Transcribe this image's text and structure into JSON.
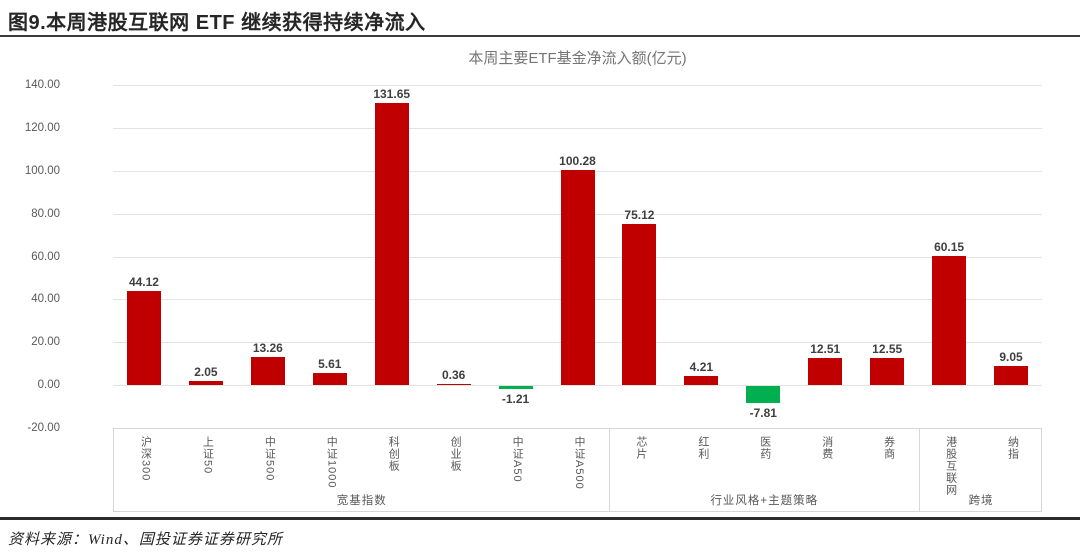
{
  "figure": {
    "title": "图9.本周港股互联网 ETF 继续获得持续净流入",
    "source": "资料来源：Wind、国投证券证券研究所"
  },
  "chart_data": {
    "type": "bar",
    "title": "本周主要ETF基金净流入额(亿元)",
    "categories": [
      "沪深300",
      "上证50",
      "中证500",
      "中证1000",
      "科创板",
      "创业板",
      "中证A50",
      "中证A500",
      "芯片",
      "红利",
      "医药",
      "消费",
      "券商",
      "港股互联网",
      "纳指"
    ],
    "values": [
      44.12,
      2.05,
      13.26,
      5.61,
      131.65,
      0.36,
      -1.21,
      100.28,
      75.12,
      4.21,
      -7.81,
      12.51,
      12.55,
      60.15,
      9.05
    ],
    "groups": [
      {
        "label": "宽基指数",
        "span": 8
      },
      {
        "label": "行业风格+主题策略",
        "span": 5
      },
      {
        "label": "跨境",
        "span": 2
      }
    ],
    "ylabel": "",
    "xlabel": "",
    "ylim": [
      -20,
      140
    ],
    "ytick_step": 20,
    "yticks": [
      "140.00",
      "120.00",
      "100.00",
      "80.00",
      "60.00",
      "40.00",
      "20.00",
      "0.00",
      "-20.00"
    ],
    "colors": {
      "positive_bar": "#c00000",
      "negative_bar": "#00b050"
    },
    "grid": true,
    "legend": "none",
    "value_labels": "shown, 2 decimals, above positive bars / below negative bars"
  }
}
